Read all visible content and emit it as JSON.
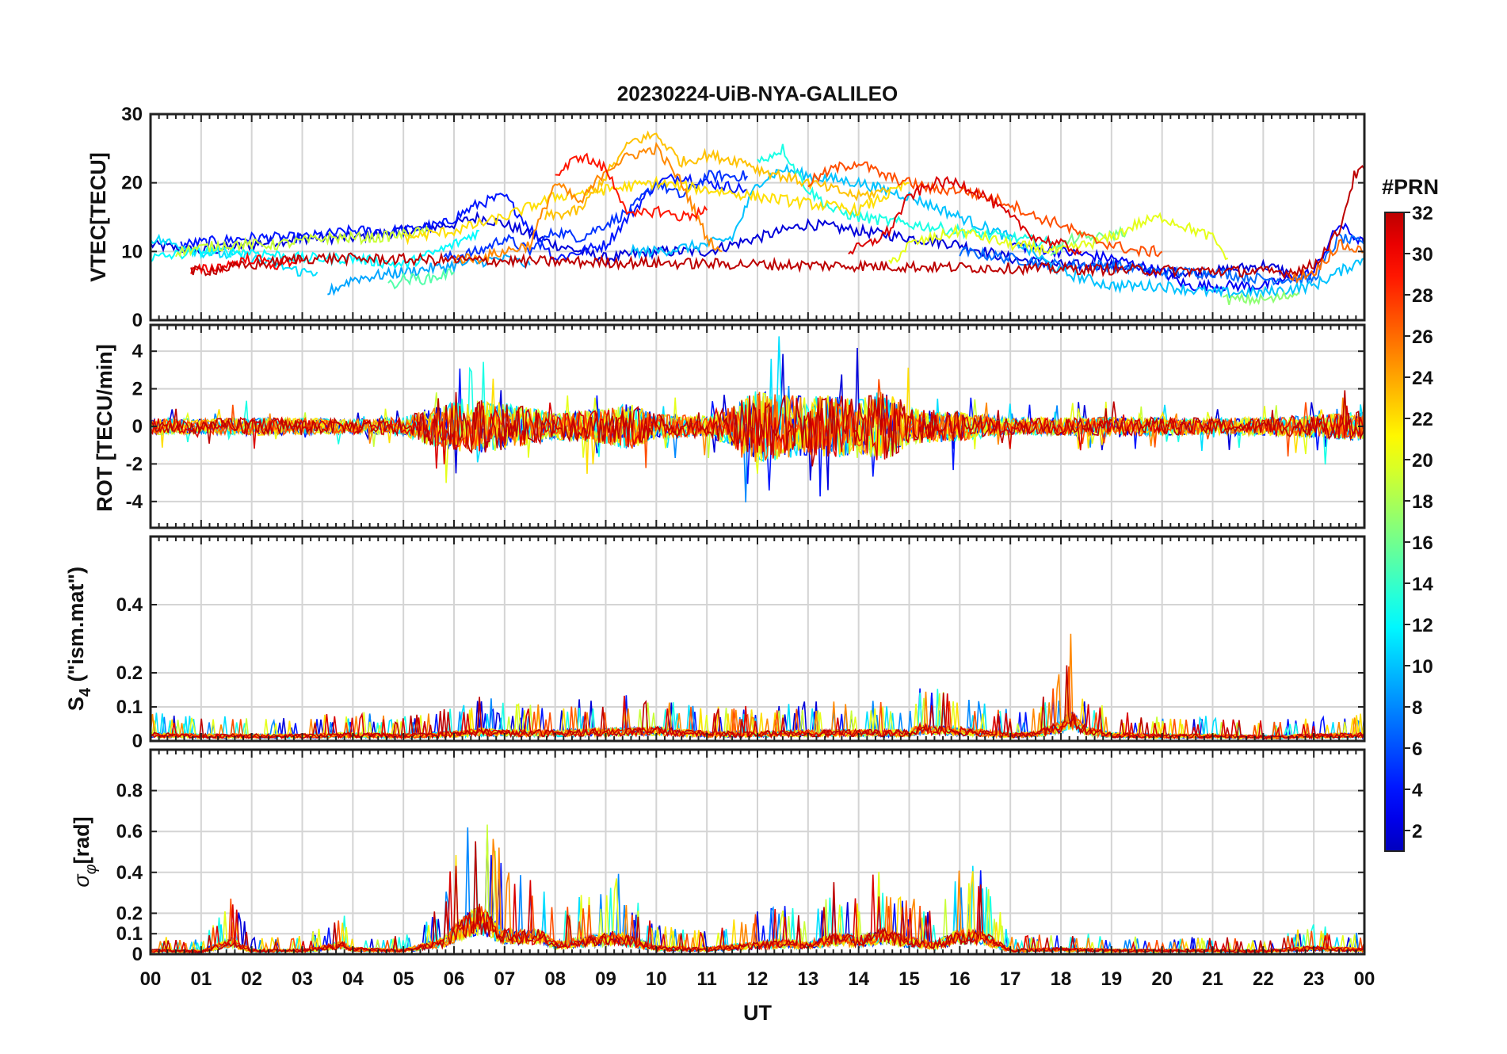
{
  "chart_data": {
    "type": "line",
    "title": "20230224-UiB-NYA-GALILEO",
    "xlabel": "UT",
    "x_ticks": [
      "00",
      "01",
      "02",
      "03",
      "04",
      "05",
      "06",
      "07",
      "08",
      "09",
      "10",
      "11",
      "12",
      "13",
      "14",
      "15",
      "16",
      "17",
      "18",
      "19",
      "20",
      "21",
      "22",
      "23",
      "00"
    ],
    "xlim": [
      0,
      24
    ],
    "grid": true,
    "colorbar": {
      "label": "#PRN",
      "ticks": [
        2,
        4,
        6,
        8,
        10,
        12,
        14,
        16,
        18,
        20,
        22,
        24,
        26,
        28,
        30,
        32
      ],
      "range": [
        1,
        32
      ],
      "colormap": "jet",
      "placement": "right"
    },
    "panels": [
      {
        "ylabel": "VTEC[TECU]",
        "ylim": [
          0,
          30
        ],
        "yticks": [
          0,
          10,
          20,
          30
        ],
        "series": [
          {
            "prn": 2,
            "x": [
              0,
              1,
              2,
              3,
              4,
              5,
              6,
              6.5,
              7,
              8,
              9,
              10,
              11,
              12,
              13,
              14,
              15,
              16,
              17,
              18,
              19,
              20,
              21,
              22,
              22.5
            ],
            "y": [
              11,
              10,
              11,
              12,
              12,
              13,
              14,
              15,
              14,
              11,
              9,
              10,
              10,
              12,
              14,
              13,
              12,
              11,
              9,
              8,
              8,
              7,
              7,
              8,
              7
            ]
          },
          {
            "prn": 4,
            "x": [
              0.6,
              2,
              3,
              4,
              5,
              5.8,
              6.5,
              7,
              8,
              9,
              10,
              10.5,
              11,
              11.8
            ],
            "y": [
              11,
              12,
              12,
              13,
              13,
              14,
              17,
              18,
              9,
              11,
              20,
              21,
              20,
              19
            ]
          },
          {
            "prn": 5,
            "x": [
              5.8,
              6.5,
              7,
              7.5,
              8,
              8.5,
              9,
              9.5,
              10,
              10.5,
              11,
              11.8
            ],
            "y": [
              9,
              10,
              12,
              10,
              13,
              12,
              14,
              16,
              20,
              18,
              21,
              21
            ]
          },
          {
            "prn": 3,
            "x": [
              17,
              18,
              19,
              20,
              20.5,
              21,
              21.5,
              22,
              23,
              23.5,
              24
            ],
            "y": [
              11,
              10,
              9,
              7,
              5,
              5,
              5,
              5,
              7,
              14,
              11
            ]
          },
          {
            "prn": 7,
            "x": [
              16,
              17,
              18,
              19,
              20,
              21,
              22,
              23,
              23.5,
              24
            ],
            "y": [
              10,
              9,
              8,
              8,
              7,
              7,
              6,
              6,
              12,
              11
            ]
          },
          {
            "prn": 9,
            "x": [
              3.5,
              4,
              5,
              6,
              7,
              7.5
            ],
            "y": [
              4,
              6,
              7,
              8,
              9,
              8
            ]
          },
          {
            "prn": 10,
            "x": [
              9.5,
              10,
              11,
              11.5,
              12,
              12.5,
              13,
              14,
              15,
              16,
              17,
              18,
              19,
              20,
              21,
              22,
              23,
              24
            ],
            "y": [
              10,
              10,
              11,
              12,
              20,
              22,
              21,
              20,
              18,
              15,
              12,
              7,
              5,
              5,
              4,
              4,
              5,
              9
            ]
          },
          {
            "prn": 11,
            "x": [
              0,
              0.5,
              1,
              2,
              2.5,
              3,
              3.3
            ],
            "y": [
              12,
              11,
              10,
              9,
              8,
              7,
              7
            ]
          },
          {
            "prn": 12,
            "x": [
              0,
              1,
              2,
              3,
              4,
              5,
              6,
              6.5
            ],
            "y": [
              9,
              10,
              10,
              9,
              9,
              8,
              11,
              13
            ]
          },
          {
            "prn": 13,
            "x": [
              12,
              12.5,
              13,
              13.5,
              14,
              15,
              16,
              17,
              18
            ],
            "y": [
              23,
              25,
              19,
              16,
              15,
              14,
              13,
              12,
              11
            ]
          },
          {
            "prn": 15,
            "x": [
              4.7,
              5,
              5.5,
              6
            ],
            "y": [
              5,
              6,
              6,
              7
            ]
          },
          {
            "prn": 16,
            "x": [
              17.8,
              18.3,
              18.8,
              19.3
            ],
            "y": [
              10,
              12,
              12,
              13
            ]
          },
          {
            "prn": 17,
            "x": [
              21.2,
              21.7,
              22.2,
              22.7
            ],
            "y": [
              3,
              3,
              3,
              4
            ]
          },
          {
            "prn": 19,
            "x": [
              0.5,
              1.5,
              2.5,
              3.5,
              4.5,
              5.5
            ],
            "y": [
              10,
              11,
              11,
              12,
              12,
              13
            ]
          },
          {
            "prn": 20,
            "x": [
              14.6,
              15,
              15.5,
              16,
              17,
              18,
              19,
              19.5,
              20,
              21,
              21.3
            ],
            "y": [
              8,
              11,
              12,
              13,
              11,
              10,
              12,
              14,
              15,
              12,
              9
            ]
          },
          {
            "prn": 22,
            "x": [
              5,
              6,
              7,
              8,
              9,
              10,
              11,
              12,
              13,
              14,
              15
            ],
            "y": [
              12,
              13,
              15,
              18,
              19,
              20,
              19,
              18,
              17,
              16,
              20
            ]
          },
          {
            "prn": 23,
            "x": [
              7.8,
              8.5,
              9,
              9.5,
              10,
              10.5,
              11,
              11.8,
              12,
              12.5,
              13,
              14,
              14.6
            ],
            "y": [
              15,
              16,
              21,
              26,
              27,
              23,
              24,
              23,
              22,
              21,
              20,
              18,
              19
            ]
          },
          {
            "prn": 25,
            "x": [
              6,
              6.5,
              7,
              7.5,
              8,
              8.5,
              9,
              9.5,
              10,
              10.5,
              11,
              11.3
            ],
            "y": [
              9,
              9,
              10,
              11,
              20,
              17,
              22,
              24,
              25,
              20,
              12,
              10
            ]
          },
          {
            "prn": 26,
            "x": [
              22.5,
              23,
              23.5,
              24
            ],
            "y": [
              6,
              7,
              11,
              10
            ]
          },
          {
            "prn": 27,
            "x": [
              13,
              13.5,
              14,
              14.5,
              15,
              15.5,
              16,
              16.5,
              17,
              17.5,
              18,
              18.5,
              19,
              19.5,
              20
            ],
            "y": [
              20,
              22,
              23,
              21,
              20,
              19,
              19,
              18,
              17,
              15,
              14,
              12,
              11,
              10,
              10
            ]
          },
          {
            "prn": 29,
            "x": [
              8,
              8.5,
              9,
              9.5,
              10,
              10.5,
              11
            ],
            "y": [
              21,
              24,
              22,
              15,
              16,
              15,
              16
            ]
          },
          {
            "prn": 30,
            "x": [
              0.8,
              1.5,
              2,
              2.5,
              3
            ],
            "y": [
              7,
              8,
              9,
              8,
              9
            ]
          },
          {
            "prn": 31,
            "x": [
              13.8,
              14.2,
              14.6,
              15,
              15.5,
              16,
              16.5,
              17,
              17.5,
              18,
              18.4
            ],
            "y": [
              10,
              11,
              13,
              18,
              20,
              20,
              18,
              15,
              12,
              11,
              10
            ]
          },
          {
            "prn": 32,
            "x": [
              0.8,
              2,
              3,
              3.5,
              22.5,
              23,
              23.5,
              23.8,
              24
            ],
            "y": [
              7,
              8,
              9,
              9,
              7,
              8,
              13,
              21,
              22
            ]
          }
        ]
      },
      {
        "ylabel": "ROT [TECU/min]",
        "ylim": [
          -5.4,
          5.4
        ],
        "yticks": [
          -4,
          -2,
          0,
          2,
          4
        ],
        "activity_envelope": {
          "x": [
            0,
            1,
            2,
            3,
            4,
            5,
            5.5,
            6,
            6.5,
            7,
            8,
            9,
            9.5,
            10,
            11,
            11.5,
            12,
            12.5,
            13,
            13.5,
            14,
            14.5,
            15,
            16,
            17,
            18,
            19,
            20,
            21,
            22,
            23,
            24
          ],
          "y": [
            0.8,
            0.7,
            0.9,
            0.8,
            0.7,
            0.9,
            1.8,
            2.4,
            2.6,
            2.3,
            1.3,
            1.8,
            2.2,
            1.2,
            1.0,
            2.0,
            3.6,
            3.2,
            2.8,
            3.2,
            2.6,
            3.6,
            1.8,
            1.4,
            0.8,
            0.9,
            0.9,
            0.9,
            0.8,
            0.9,
            1.1,
            1.4
          ]
        }
      },
      {
        "ylabel": "S4 (\"ism.mat\")",
        "ylim": [
          0,
          0.6
        ],
        "yticks": [
          0,
          0.1,
          0.2,
          0.4
        ],
        "activity_envelope": {
          "x": [
            0,
            1,
            2,
            3,
            4,
            5,
            6,
            6.5,
            7,
            8,
            9,
            10,
            11,
            12,
            13,
            14,
            15,
            15.2,
            16,
            17,
            17.5,
            18,
            18.2,
            18.5,
            19,
            20,
            21,
            22,
            23,
            24
          ],
          "y": [
            0.06,
            0.05,
            0.05,
            0.05,
            0.06,
            0.05,
            0.07,
            0.09,
            0.08,
            0.08,
            0.09,
            0.1,
            0.07,
            0.07,
            0.08,
            0.08,
            0.08,
            0.12,
            0.1,
            0.06,
            0.07,
            0.14,
            0.22,
            0.1,
            0.06,
            0.05,
            0.05,
            0.04,
            0.05,
            0.06
          ]
        }
      },
      {
        "ylabel": "σφ[rad]",
        "ylim": [
          0,
          1
        ],
        "yticks": [
          0,
          0.1,
          0.2,
          0.4,
          0.6,
          0.8
        ],
        "activity_envelope": {
          "x": [
            0,
            1,
            1.6,
            2,
            3,
            3.8,
            4,
            5,
            5.8,
            6,
            6.5,
            6.8,
            7,
            7.7,
            8,
            9,
            9.2,
            10,
            11,
            12,
            12.5,
            13,
            13.5,
            14,
            14.5,
            15,
            15.5,
            16,
            16.4,
            17,
            18,
            19,
            20,
            21,
            22,
            23,
            24
          ],
          "y": [
            0.06,
            0.05,
            0.2,
            0.06,
            0.06,
            0.15,
            0.08,
            0.06,
            0.2,
            0.35,
            0.6,
            0.4,
            0.3,
            0.3,
            0.15,
            0.25,
            0.28,
            0.1,
            0.08,
            0.15,
            0.18,
            0.15,
            0.25,
            0.22,
            0.3,
            0.2,
            0.15,
            0.3,
            0.3,
            0.06,
            0.08,
            0.06,
            0.06,
            0.06,
            0.05,
            0.1,
            0.07
          ]
        }
      }
    ]
  }
}
